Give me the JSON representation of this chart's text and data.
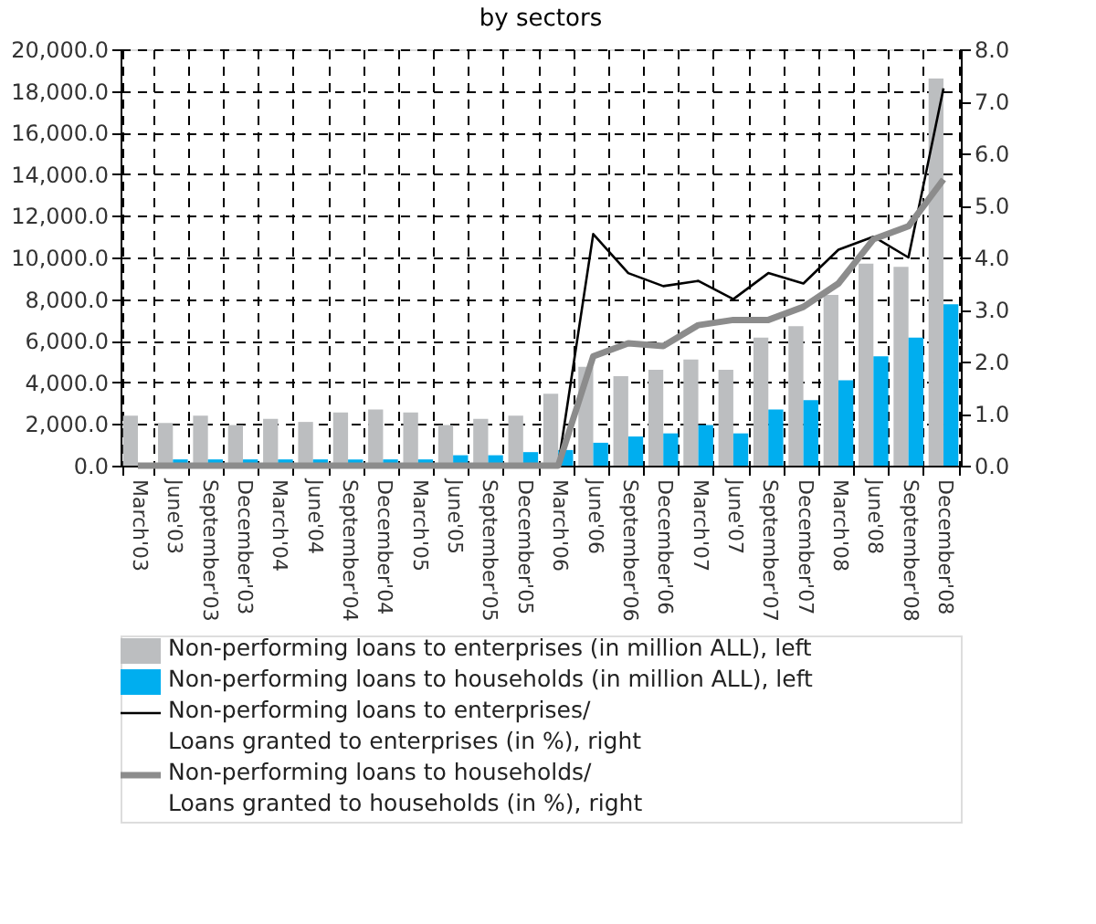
{
  "chart_data": {
    "type": "bar",
    "title": "by sectors",
    "categories": [
      "March'03",
      "June'03",
      "September'03",
      "December'03",
      "March'04",
      "June'04",
      "September'04",
      "December'04",
      "March'05",
      "June'05",
      "September'05",
      "December'05",
      "March'06",
      "June'06",
      "September'06",
      "December'06",
      "March'07",
      "June'07",
      "September'07",
      "December'07",
      "March'08",
      "June'08",
      "September'08",
      "December'08"
    ],
    "series": [
      {
        "name": "Non-performing loans to enterprises (in million ALL), left",
        "type": "bar",
        "color": "#bcbec0",
        "values": [
          2400,
          2050,
          2400,
          1950,
          2250,
          2100,
          2550,
          2700,
          2550,
          1950,
          2250,
          2400,
          3450,
          4750,
          4300,
          4600,
          5100,
          4600,
          6150,
          6700,
          8200,
          9700,
          9550,
          18600
        ]
      },
      {
        "name": "Non-performing loans to households (in million ALL), left",
        "type": "bar",
        "color": "#00aeef",
        "values": [
          0,
          300,
          300,
          300,
          300,
          300,
          300,
          300,
          300,
          500,
          500,
          650,
          750,
          1100,
          1400,
          1550,
          1950,
          1550,
          2700,
          3150,
          4100,
          5250,
          6150,
          7750
        ]
      },
      {
        "name": "Non-performing loans to enterprises/ Loans granted to enterprises (in %), right",
        "type": "line",
        "axis": "y2",
        "color": "#000000",
        "values": [
          0,
          0,
          0,
          0,
          0,
          0,
          0,
          0,
          0,
          0,
          0,
          0,
          0,
          4.45,
          3.7,
          3.45,
          3.55,
          3.2,
          3.7,
          3.5,
          4.15,
          4.4,
          4.0,
          7.25
        ]
      },
      {
        "name": "Non-performing loans to households/ Loans granted to households (in %), right",
        "type": "line",
        "axis": "y2",
        "color": "#8c8c8c",
        "values": [
          0,
          0,
          0,
          0,
          0,
          0,
          0,
          0,
          0,
          0,
          0,
          0,
          0,
          2.1,
          2.35,
          2.3,
          2.7,
          2.8,
          2.8,
          3.05,
          3.5,
          4.35,
          4.6,
          5.5
        ]
      }
    ],
    "ylim": [
      0,
      20000
    ],
    "yticks": [
      {
        "value": 0,
        "label": "0.0"
      },
      {
        "value": 2000,
        "label": "2,000.0"
      },
      {
        "value": 4000,
        "label": "4,000.0"
      },
      {
        "value": 6000,
        "label": "6,000.0"
      },
      {
        "value": 8000,
        "label": "8,000.0"
      },
      {
        "value": 10000,
        "label": "10,000.0"
      },
      {
        "value": 12000,
        "label": "12,000.0"
      },
      {
        "value": 14000,
        "label": "14,000.0"
      },
      {
        "value": 16000,
        "label": "16,000.0"
      },
      {
        "value": 18000,
        "label": "18,000.0"
      },
      {
        "value": 20000,
        "label": "20,000.0"
      }
    ],
    "y2lim": [
      0,
      8
    ],
    "y2ticks": [
      {
        "value": 0,
        "label": "0.0"
      },
      {
        "value": 1,
        "label": "1.0"
      },
      {
        "value": 2,
        "label": "2.0"
      },
      {
        "value": 3,
        "label": "3.0"
      },
      {
        "value": 4,
        "label": "4.0"
      },
      {
        "value": 5,
        "label": "5.0"
      },
      {
        "value": 6,
        "label": "6.0"
      },
      {
        "value": 7,
        "label": "7.0"
      },
      {
        "value": 8,
        "label": "8.0"
      }
    ],
    "grid": true,
    "legend": "bottom"
  }
}
